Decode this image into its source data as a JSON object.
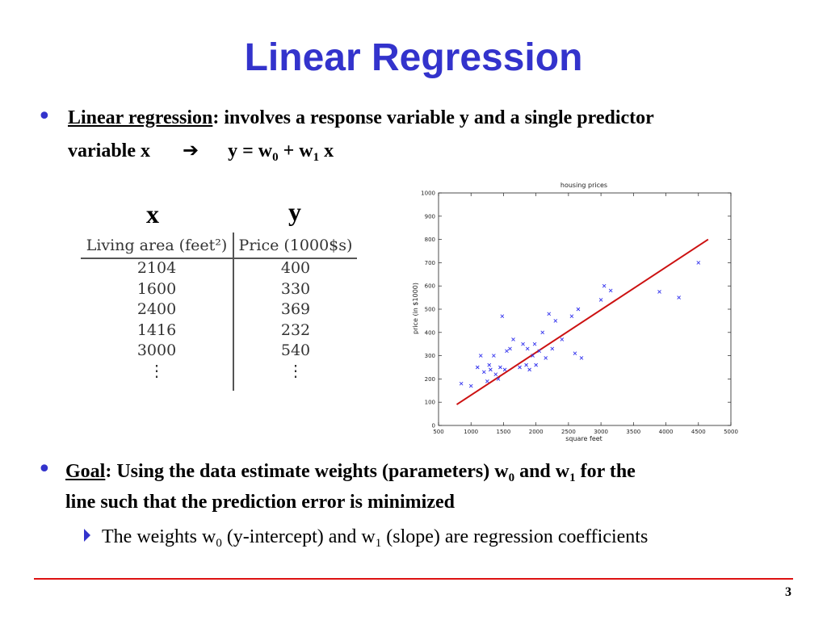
{
  "slide": {
    "title": "Linear Regression",
    "page_number": "3"
  },
  "bullet1": {
    "term": "Linear regression",
    "text": ": involves a response variable y and a single predictor",
    "line2_prefix": "variable x",
    "arrow": "➔",
    "eq": {
      "lhs": "y = w",
      "sub0": "0",
      "mid": " + w",
      "sub1": "1",
      "tail": " x"
    }
  },
  "table": {
    "x_label": "x",
    "y_label": "y",
    "headers": {
      "living_area": "Living area (feet²)",
      "price": "Price (1000$s)"
    },
    "rows": [
      {
        "area": "2104",
        "price": "400"
      },
      {
        "area": "1600",
        "price": "330"
      },
      {
        "area": "2400",
        "price": "369"
      },
      {
        "area": "1416",
        "price": "232"
      },
      {
        "area": "3000",
        "price": "540"
      }
    ],
    "ellipsis": "⋮"
  },
  "bullet2": {
    "term": "Goal",
    "text_a": ": Using the data estimate weights (parameters) w",
    "sub0": "0",
    "text_b": " and w",
    "sub1": "1",
    "text_c": " for the",
    "line2": "line such that the prediction error is minimized",
    "sub_bullet": {
      "a": "The weights w",
      "sub0": "0",
      "b": " (y-intercept) and w",
      "sub1": "1",
      "c": " (slope) are regression coefficients"
    }
  },
  "chart_data": {
    "type": "scatter",
    "title": "housing prices",
    "xlabel": "square feet",
    "ylabel": "price (in $1000)",
    "xlim": [
      500,
      5000
    ],
    "ylim": [
      0,
      1000
    ],
    "xticks": [
      500,
      1000,
      1500,
      2000,
      2500,
      3000,
      3500,
      4000,
      4500,
      5000
    ],
    "yticks": [
      0,
      100,
      200,
      300,
      400,
      500,
      600,
      700,
      800,
      900,
      1000
    ],
    "grid": false,
    "marker": "x",
    "marker_color": "#3333ee",
    "line_color": "#cc1111",
    "points": [
      [
        850,
        180
      ],
      [
        1000,
        170
      ],
      [
        1100,
        250
      ],
      [
        1150,
        300
      ],
      [
        1200,
        230
      ],
      [
        1250,
        190
      ],
      [
        1280,
        260
      ],
      [
        1300,
        240
      ],
      [
        1350,
        300
      ],
      [
        1380,
        220
      ],
      [
        1420,
        200
      ],
      [
        1450,
        250
      ],
      [
        1480,
        470
      ],
      [
        1520,
        240
      ],
      [
        1550,
        320
      ],
      [
        1600,
        330
      ],
      [
        1650,
        370
      ],
      [
        1750,
        250
      ],
      [
        1800,
        350
      ],
      [
        1850,
        260
      ],
      [
        1870,
        330
      ],
      [
        1900,
        240
      ],
      [
        1950,
        300
      ],
      [
        1980,
        350
      ],
      [
        2000,
        260
      ],
      [
        2050,
        320
      ],
      [
        2100,
        400
      ],
      [
        2150,
        290
      ],
      [
        2200,
        480
      ],
      [
        2250,
        330
      ],
      [
        2300,
        450
      ],
      [
        2400,
        370
      ],
      [
        2550,
        470
      ],
      [
        2600,
        310
      ],
      [
        2650,
        500
      ],
      [
        2700,
        290
      ],
      [
        3000,
        540
      ],
      [
        3050,
        600
      ],
      [
        3150,
        580
      ],
      [
        3900,
        575
      ],
      [
        4200,
        550
      ],
      [
        4500,
        700
      ]
    ],
    "fit_line": [
      [
        780,
        90
      ],
      [
        4650,
        800
      ]
    ]
  },
  "colors": {
    "title_blue": "#3333cc",
    "footer_red": "#dd1111"
  }
}
